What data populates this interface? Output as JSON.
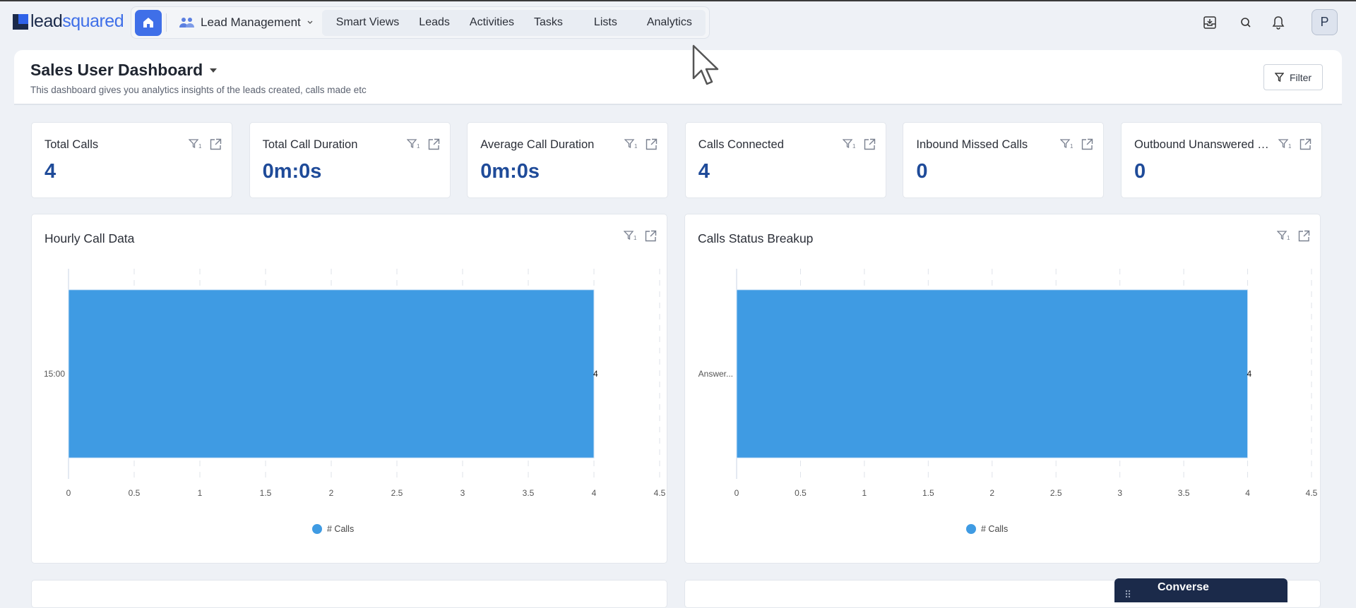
{
  "brand": {
    "logo_text_a": "lead",
    "logo_text_b": "squared"
  },
  "nav": {
    "module": "Lead Management",
    "links": [
      "Smart Views",
      "Leads",
      "Activities",
      "Tasks",
      "Lists",
      "Analytics"
    ]
  },
  "topbar": {
    "icons": [
      "download-tray-icon",
      "search-icon",
      "bell-icon"
    ],
    "avatar": "P"
  },
  "dashboard": {
    "title": "Sales User Dashboard",
    "subtitle": "This dashboard gives you analytics insights of the leads created, calls made etc",
    "filter_label": "Filter"
  },
  "kpis": [
    {
      "label": "Total Calls",
      "value": "4"
    },
    {
      "label": "Total Call Duration",
      "value": "0m:0s"
    },
    {
      "label": "Average Call Duration",
      "value": "0m:0s"
    },
    {
      "label": "Calls Connected",
      "value": "4"
    },
    {
      "label": "Inbound Missed Calls",
      "value": "0"
    },
    {
      "label": "Outbound Unanswered Calls",
      "value": "0"
    }
  ],
  "filter_badge": "1",
  "chart_data": [
    {
      "type": "bar",
      "orientation": "horizontal",
      "title": "Hourly Call Data",
      "categories": [
        "15:00"
      ],
      "series": [
        {
          "name": "# Calls",
          "values": [
            4
          ]
        }
      ],
      "xlim": [
        0,
        4.5
      ],
      "xticks": [
        "0",
        "0.5",
        "1",
        "1.5",
        "2",
        "2.5",
        "3",
        "3.5",
        "4",
        "4.5"
      ],
      "grid": true,
      "legend": "bottom",
      "color": "#3f9be3"
    },
    {
      "type": "bar",
      "orientation": "horizontal",
      "title": "Calls Status Breakup",
      "categories": [
        "Answer..."
      ],
      "series": [
        {
          "name": "# Calls",
          "values": [
            4
          ]
        }
      ],
      "xlim": [
        0,
        4.5
      ],
      "xticks": [
        "0",
        "0.5",
        "1",
        "1.5",
        "2",
        "2.5",
        "3",
        "3.5",
        "4",
        "4.5"
      ],
      "grid": true,
      "legend": "bottom",
      "color": "#3f9be3"
    }
  ],
  "converse": {
    "label": "Converse"
  }
}
